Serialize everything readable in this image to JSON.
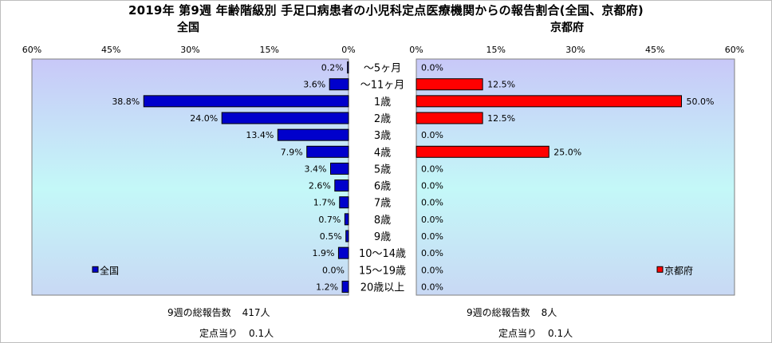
{
  "title": "2019年 第9週 年齢階級別 手足口病患者の小児科定点医療機関からの報告割合(全国、京都府)",
  "colors": {
    "national_bar": "#0000cc",
    "kyoto_bar": "#ff0000",
    "plot_bg_top": "#c8c8f8",
    "plot_bg_mid": "#c4f8f8",
    "plot_bg_bottom": "#c8d8f4"
  },
  "chart_data": [
    {
      "type": "bar",
      "orientation": "horizontal",
      "direction": "right-to-left",
      "subtitle": "全国",
      "legend": "全国",
      "legend_position": "bottom-left",
      "xlim": [
        0,
        60
      ],
      "x_ticks": [
        "60%",
        "45%",
        "30%",
        "15%",
        "0%"
      ],
      "grid": false,
      "categories": [
        "～5ヶ月",
        "～11ヶ月",
        "1歳",
        "2歳",
        "3歳",
        "4歳",
        "5歳",
        "6歳",
        "7歳",
        "8歳",
        "9歳",
        "10～14歳",
        "15～19歳",
        "20歳以上"
      ],
      "series": [
        {
          "name": "全国",
          "values": [
            0.2,
            3.6,
            38.8,
            24.0,
            13.4,
            7.9,
            3.4,
            2.6,
            1.7,
            0.7,
            0.5,
            1.9,
            0.0,
            1.2
          ],
          "labels": [
            "0.2%",
            "3.6%",
            "38.8%",
            "24.0%",
            "13.4%",
            "7.9%",
            "3.4%",
            "2.6%",
            "1.7%",
            "0.7%",
            "0.5%",
            "1.9%",
            "0.0%",
            "1.2%"
          ]
        }
      ]
    },
    {
      "type": "bar",
      "orientation": "horizontal",
      "direction": "left-to-right",
      "subtitle": "京都府",
      "legend": "京都府",
      "legend_position": "bottom-right",
      "xlim": [
        0,
        60
      ],
      "x_ticks": [
        "0%",
        "15%",
        "30%",
        "45%",
        "60%"
      ],
      "grid": false,
      "categories": [
        "～5ヶ月",
        "～11ヶ月",
        "1歳",
        "2歳",
        "3歳",
        "4歳",
        "5歳",
        "6歳",
        "7歳",
        "8歳",
        "9歳",
        "10～14歳",
        "15～19歳",
        "20歳以上"
      ],
      "series": [
        {
          "name": "京都府",
          "values": [
            0.0,
            12.5,
            50.0,
            12.5,
            0.0,
            25.0,
            0.0,
            0.0,
            0.0,
            0.0,
            0.0,
            0.0,
            0.0,
            0.0
          ],
          "labels": [
            "0.0%",
            "12.5%",
            "50.0%",
            "12.5%",
            "0.0%",
            "25.0%",
            "0.0%",
            "0.0%",
            "0.0%",
            "0.0%",
            "0.0%",
            "0.0%",
            "0.0%",
            "0.0%"
          ]
        }
      ]
    }
  ],
  "footer": {
    "national": {
      "total_label": "9週の総報告数",
      "total_value": "417人",
      "per_site_label": "定点当り",
      "per_site_value": "0.1人"
    },
    "kyoto": {
      "total_label": "9週の総報告数",
      "total_value": "8人",
      "per_site_label": "定点当り",
      "per_site_value": "0.1人"
    }
  }
}
